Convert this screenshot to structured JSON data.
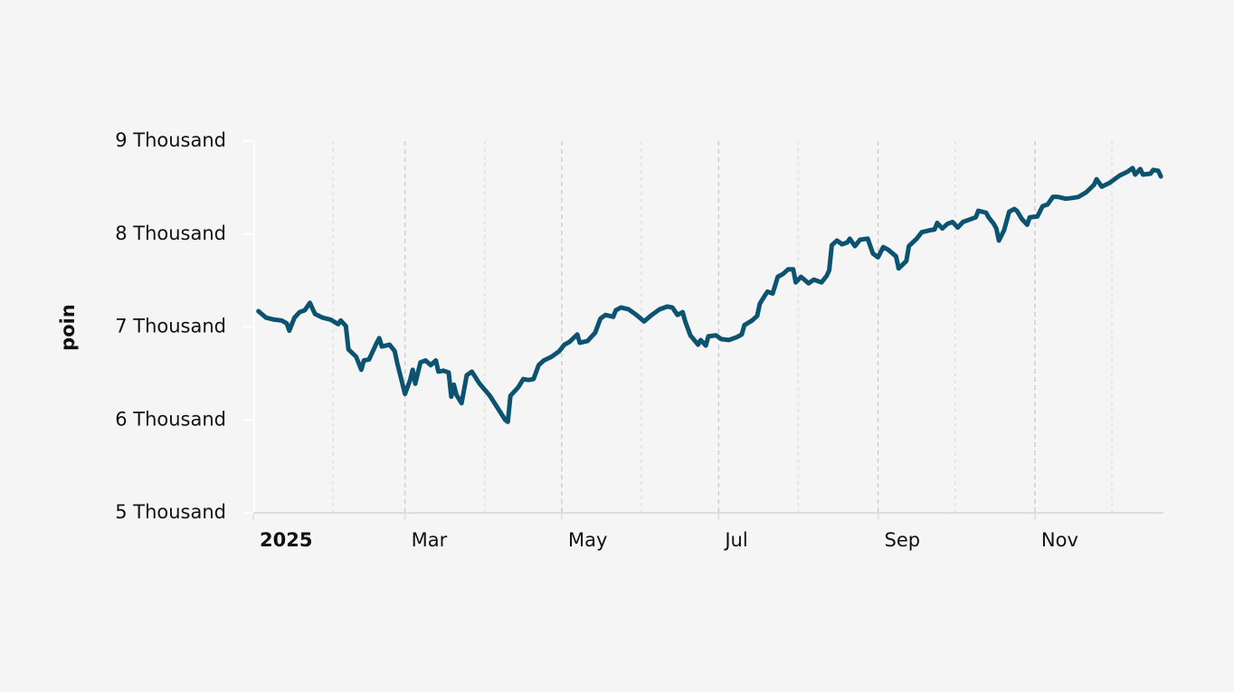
{
  "chart_data": {
    "type": "line",
    "ylabel": "poin",
    "x": [
      "2025-01-03",
      "2025-01-06",
      "2025-01-09",
      "2025-01-12",
      "2025-01-14",
      "2025-01-15",
      "2025-01-17",
      "2025-01-19",
      "2025-01-21",
      "2025-01-23",
      "2025-01-25",
      "2025-01-28",
      "2025-01-31",
      "2025-02-03",
      "2025-02-04",
      "2025-02-06",
      "2025-02-07",
      "2025-02-10",
      "2025-02-12",
      "2025-02-13",
      "2025-02-15",
      "2025-02-18",
      "2025-02-19",
      "2025-02-20",
      "2025-02-23",
      "2025-02-25",
      "2025-02-26",
      "2025-03-01",
      "2025-03-03",
      "2025-03-04",
      "2025-03-05",
      "2025-03-07",
      "2025-03-09",
      "2025-03-11",
      "2025-03-13",
      "2025-03-14",
      "2025-03-16",
      "2025-03-18",
      "2025-03-19",
      "2025-03-20",
      "2025-03-21",
      "2025-03-23",
      "2025-03-25",
      "2025-03-27",
      "2025-03-30",
      "2025-04-03",
      "2025-04-06",
      "2025-04-09",
      "2025-04-10",
      "2025-04-11",
      "2025-04-14",
      "2025-04-16",
      "2025-04-18",
      "2025-04-20",
      "2025-04-22",
      "2025-04-24",
      "2025-04-27",
      "2025-04-30",
      "2025-05-02",
      "2025-05-04",
      "2025-05-07",
      "2025-05-08",
      "2025-05-11",
      "2025-05-14",
      "2025-05-16",
      "2025-05-18",
      "2025-05-21",
      "2025-05-22",
      "2025-05-24",
      "2025-05-27",
      "2025-05-30",
      "2025-06-02",
      "2025-06-05",
      "2025-06-08",
      "2025-06-11",
      "2025-06-13",
      "2025-06-15",
      "2025-06-17",
      "2025-06-18",
      "2025-06-20",
      "2025-06-23",
      "2025-06-24",
      "2025-06-26",
      "2025-06-27",
      "2025-06-30",
      "2025-07-02",
      "2025-07-05",
      "2025-07-08",
      "2025-07-10",
      "2025-07-11",
      "2025-07-14",
      "2025-07-16",
      "2025-07-17",
      "2025-07-19",
      "2025-07-20",
      "2025-07-22",
      "2025-07-24",
      "2025-07-26",
      "2025-07-28",
      "2025-07-30",
      "2025-07-31",
      "2025-08-02",
      "2025-08-05",
      "2025-08-07",
      "2025-08-10",
      "2025-08-12",
      "2025-08-13",
      "2025-08-14",
      "2025-08-16",
      "2025-08-18",
      "2025-08-20",
      "2025-08-21",
      "2025-08-23",
      "2025-08-25",
      "2025-08-28",
      "2025-08-30",
      "2025-09-01",
      "2025-09-03",
      "2025-09-05",
      "2025-09-08",
      "2025-09-09",
      "2025-09-12",
      "2025-09-13",
      "2025-09-16",
      "2025-09-18",
      "2025-09-21",
      "2025-09-23",
      "2025-09-24",
      "2025-09-26",
      "2025-09-28",
      "2025-09-30",
      "2025-10-02",
      "2025-10-04",
      "2025-10-07",
      "2025-10-09",
      "2025-10-10",
      "2025-10-13",
      "2025-10-14",
      "2025-10-16",
      "2025-10-17",
      "2025-10-18",
      "2025-10-20",
      "2025-10-22",
      "2025-10-24",
      "2025-10-25",
      "2025-10-27",
      "2025-10-29",
      "2025-10-30",
      "2025-11-02",
      "2025-11-04",
      "2025-11-06",
      "2025-11-08",
      "2025-11-10",
      "2025-11-13",
      "2025-11-16",
      "2025-11-18",
      "2025-11-21",
      "2025-11-24",
      "2025-11-25",
      "2025-11-27",
      "2025-11-30",
      "2025-12-02",
      "2025-12-04",
      "2025-12-07",
      "2025-12-09",
      "2025-12-10",
      "2025-12-12",
      "2025-12-13",
      "2025-12-16",
      "2025-12-17",
      "2025-12-19",
      "2025-12-20"
    ],
    "values": [
      7170,
      7100,
      7080,
      7070,
      7040,
      6960,
      7100,
      7160,
      7180,
      7260,
      7140,
      7100,
      7080,
      7030,
      7070,
      7010,
      6760,
      6680,
      6540,
      6640,
      6650,
      6830,
      6880,
      6790,
      6810,
      6740,
      6610,
      6280,
      6430,
      6540,
      6390,
      6620,
      6640,
      6590,
      6640,
      6520,
      6530,
      6510,
      6250,
      6380,
      6270,
      6180,
      6480,
      6520,
      6390,
      6260,
      6130,
      6000,
      5980,
      6260,
      6350,
      6440,
      6430,
      6440,
      6590,
      6640,
      6680,
      6740,
      6810,
      6840,
      6920,
      6830,
      6850,
      6940,
      7090,
      7130,
      7110,
      7180,
      7210,
      7190,
      7130,
      7060,
      7130,
      7190,
      7220,
      7210,
      7130,
      7160,
      7060,
      6910,
      6810,
      6860,
      6800,
      6900,
      6910,
      6870,
      6860,
      6890,
      6920,
      7020,
      7070,
      7120,
      7250,
      7340,
      7380,
      7360,
      7540,
      7570,
      7620,
      7620,
      7480,
      7540,
      7470,
      7510,
      7480,
      7550,
      7610,
      7880,
      7930,
      7890,
      7910,
      7950,
      7870,
      7940,
      7950,
      7790,
      7750,
      7860,
      7830,
      7760,
      7630,
      7710,
      7870,
      7950,
      8020,
      8040,
      8050,
      8120,
      8060,
      8110,
      8130,
      8070,
      8130,
      8160,
      8180,
      8250,
      8230,
      8180,
      8110,
      8060,
      7930,
      8040,
      8240,
      8270,
      8250,
      8160,
      8100,
      8180,
      8190,
      8300,
      8320,
      8400,
      8400,
      8380,
      8390,
      8400,
      8450,
      8530,
      8590,
      8510,
      8550,
      8590,
      8630,
      8670,
      8710,
      8640,
      8700,
      8640,
      8650,
      8690,
      8680,
      8620
    ],
    "color": "#0b5370",
    "xlim": [
      "2025-01-01",
      "2025-12-21"
    ],
    "xticks": [
      {
        "value": "2025-01-01",
        "label": "2025"
      },
      {
        "value": "2025-03-01",
        "label": "Mar"
      },
      {
        "value": "2025-05-01",
        "label": "May"
      },
      {
        "value": "2025-07-01",
        "label": "Jul"
      },
      {
        "value": "2025-09-01",
        "label": "Sep"
      },
      {
        "value": "2025-11-01",
        "label": "Nov"
      }
    ],
    "xminor": [
      "2025-02-01",
      "2025-04-01",
      "2025-06-01",
      "2025-08-01",
      "2025-10-01",
      "2025-12-01"
    ],
    "ylim": [
      5000,
      9000
    ],
    "yticks": [
      {
        "value": 5000,
        "label": "5 Thousand"
      },
      {
        "value": 6000,
        "label": "6 Thousand"
      },
      {
        "value": 7000,
        "label": "7 Thousand"
      },
      {
        "value": 8000,
        "label": "8 Thousand"
      },
      {
        "value": 9000,
        "label": "9 Thousand"
      }
    ],
    "grid": true
  }
}
